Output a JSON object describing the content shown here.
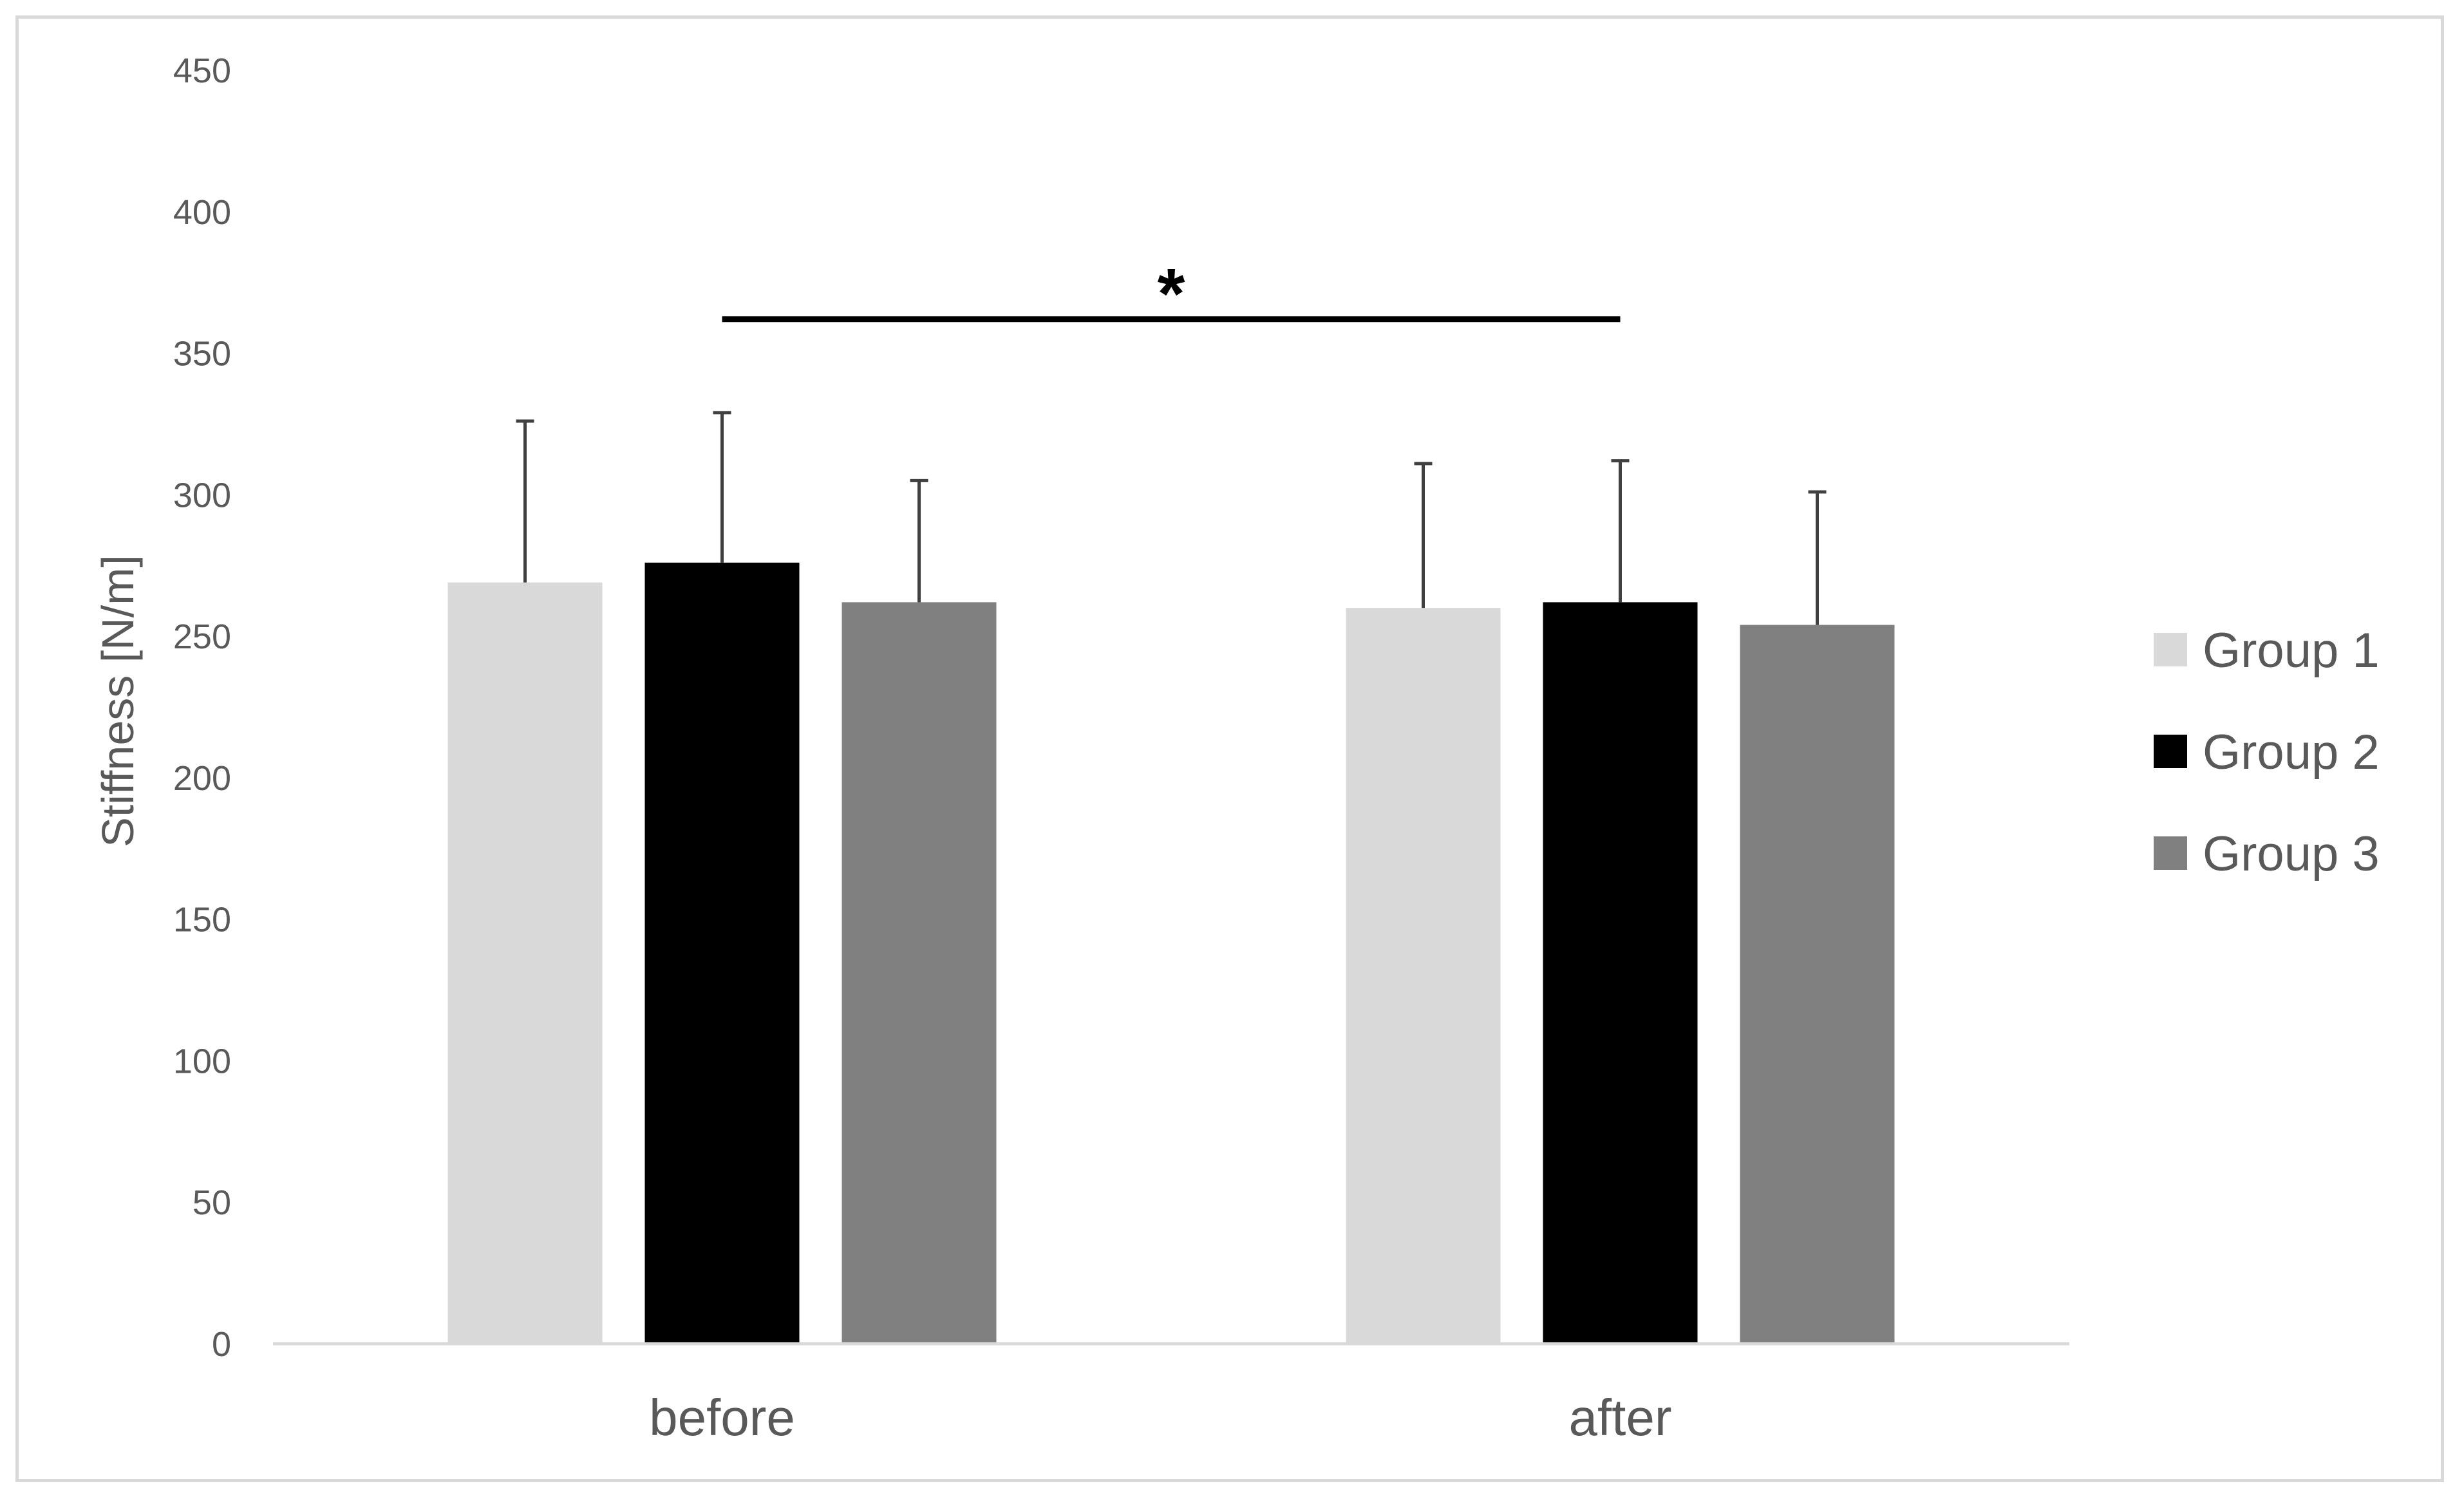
{
  "chart_data": {
    "type": "bar",
    "title": "",
    "xlabel": "",
    "ylabel": "Stiffness [N/m]",
    "ylim": [
      0,
      450
    ],
    "yticks": [
      0,
      50,
      100,
      150,
      200,
      250,
      300,
      350,
      400,
      450
    ],
    "grid": false,
    "legend_position": "right",
    "categories": [
      "before",
      "after"
    ],
    "series": [
      {
        "name": "Group 1",
        "color": "#d9d9d9",
        "values": [
          269,
          260
        ],
        "errors": [
          57,
          51
        ]
      },
      {
        "name": "Group 2",
        "color": "#000000",
        "values": [
          276,
          262
        ],
        "errors": [
          53,
          50
        ]
      },
      {
        "name": "Group 3",
        "color": "#808080",
        "values": [
          262,
          254
        ],
        "errors": [
          43,
          47
        ]
      }
    ],
    "annotations": [
      {
        "text": "*",
        "type": "significance-bracket",
        "from": "before",
        "to": "after",
        "y": 362
      }
    ],
    "errorbar_color": "#404040",
    "axis_color": "#d9d9d9"
  }
}
